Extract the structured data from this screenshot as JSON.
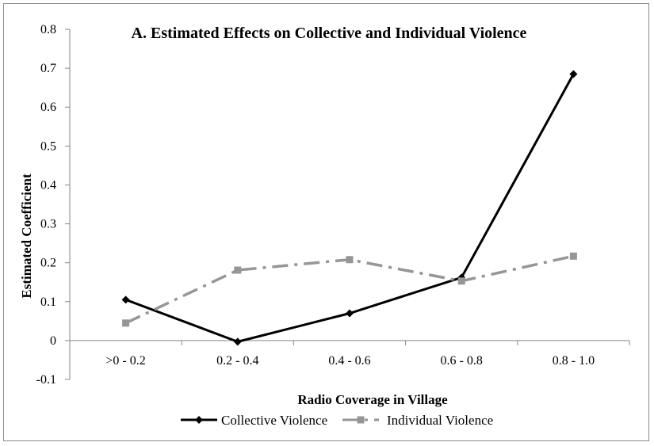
{
  "chart_data": {
    "type": "line",
    "title": "A. Estimated Effects on Collective and Individual Violence",
    "xlabel": "Radio Coverage in Village",
    "ylabel": "Estimated Coefficient",
    "categories": [
      ">0 - 0.2",
      "0.2 - 0.4",
      "0.4 - 0.6",
      "0.6 - 0.8",
      "0.8 - 1.0"
    ],
    "ylim": [
      -0.1,
      0.8
    ],
    "yticks": [
      -0.1,
      0,
      0.1,
      0.2,
      0.3,
      0.4,
      0.5,
      0.6,
      0.7,
      0.8
    ],
    "ytick_labels": [
      "-0.1",
      "0",
      "0.1",
      "0.2",
      "0.3",
      "0.4",
      "0.5",
      "0.6",
      "0.7",
      "0.8"
    ],
    "grid": false,
    "legend_position": "bottom",
    "series": [
      {
        "name": "Collective Violence",
        "values": [
          0.105,
          -0.003,
          0.07,
          0.162,
          0.685
        ],
        "color": "#000000",
        "line_style": "solid",
        "marker": "diamond"
      },
      {
        "name": "Individual Violence",
        "values": [
          0.045,
          0.181,
          0.208,
          0.153,
          0.217
        ],
        "color": "#969696",
        "line_style": "dash-dot",
        "marker": "square"
      }
    ]
  }
}
